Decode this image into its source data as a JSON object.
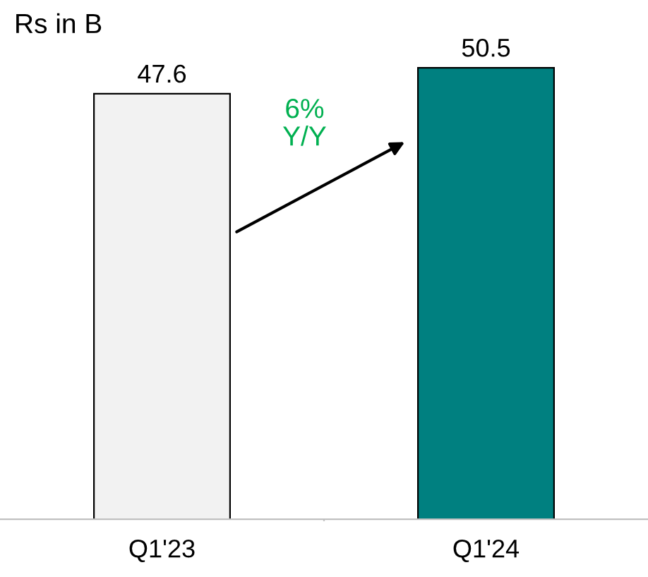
{
  "chart_data": {
    "type": "bar",
    "categories": [
      "Q1'23",
      "Q1'24"
    ],
    "values": [
      47.6,
      50.5
    ],
    "colors": [
      "#f2f2f2",
      "#008080"
    ],
    "data_labels": true,
    "annotations": [
      "Rs in B",
      "6%\nY/Y"
    ],
    "grid": false,
    "legend": false
  }
}
